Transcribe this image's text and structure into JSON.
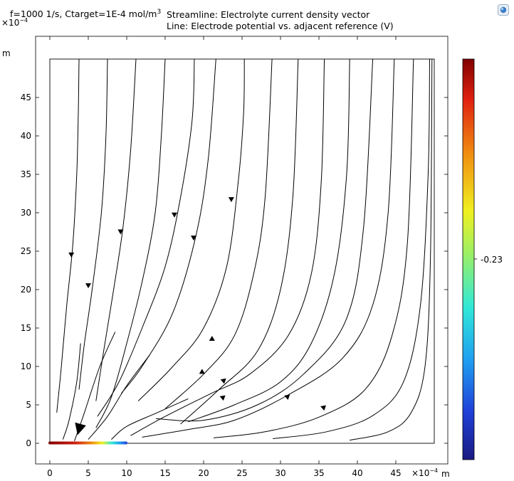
{
  "header": {
    "left_title_main": "f=1000 1/s, Ctarget=1E-4 mol/m",
    "left_title_sup": "3",
    "right_title_line1": "Streamline: Electrolyte current density vector",
    "right_title_line2": "Line: Electrode potential vs. adjacent reference (V)"
  },
  "colors": {
    "background": "#ffffff",
    "streamline": "#000000",
    "frame": "#000000",
    "colormap": [
      "#1a1a80",
      "#1f40d8",
      "#1fa0f0",
      "#30e8d8",
      "#a0f060",
      "#f0f020",
      "#f09010",
      "#e02010",
      "#800000"
    ]
  },
  "chart_data": {
    "type": "streamline",
    "xlabel": "m",
    "ylabel": "m",
    "x_exponent_label": "×10",
    "x_exponent_power": "−4",
    "y_exponent_label": "×10",
    "y_exponent_power": "−4",
    "xlim": [
      0,
      50
    ],
    "ylim": [
      0,
      50
    ],
    "xticks": [
      0,
      5,
      10,
      15,
      20,
      25,
      30,
      35,
      40,
      45
    ],
    "yticks": [
      0,
      5,
      10,
      15,
      20,
      25,
      30,
      35,
      40,
      45
    ],
    "electrode": {
      "x": [
        0,
        10
      ],
      "y": 0
    },
    "colorbar": {
      "label": "-0.23",
      "label_value": -0.23
    },
    "streamlines": [
      {
        "name": "s1",
        "points": [
          [
            0.9,
            4
          ],
          [
            1.5,
            10
          ],
          [
            2.2,
            18
          ],
          [
            3.0,
            26
          ],
          [
            3.5,
            35
          ],
          [
            3.7,
            43
          ],
          [
            3.8,
            50
          ]
        ],
        "arrows": [
          {
            "x": 2.8,
            "y": 24.5,
            "dir": "down"
          }
        ]
      },
      {
        "name": "s2",
        "points": [
          [
            3.8,
            7
          ],
          [
            4.5,
            13
          ],
          [
            5.5,
            20
          ],
          [
            6.7,
            30
          ],
          [
            7.3,
            40
          ],
          [
            7.5,
            50
          ]
        ],
        "arrows": [
          {
            "x": 5.0,
            "y": 20.5,
            "dir": "down"
          }
        ]
      },
      {
        "name": "s3",
        "points": [
          [
            6.0,
            5.5
          ],
          [
            7.0,
            12
          ],
          [
            8.3,
            20
          ],
          [
            9.5,
            28
          ],
          [
            10.5,
            38
          ],
          [
            11.2,
            50
          ]
        ],
        "arrows": [
          {
            "x": 9.2,
            "y": 27.5,
            "dir": "down"
          }
        ]
      },
      {
        "name": "s4",
        "points": [
          [
            6.0,
            2
          ],
          [
            8,
            6
          ],
          [
            10,
            13
          ],
          [
            12,
            21
          ],
          [
            13.7,
            30
          ],
          [
            14.5,
            40
          ],
          [
            15,
            50
          ]
        ],
        "arrows": []
      },
      {
        "name": "s5",
        "points": [
          [
            6.2,
            3.5
          ],
          [
            9,
            8
          ],
          [
            12,
            15
          ],
          [
            15,
            23
          ],
          [
            17,
            32
          ],
          [
            18.5,
            42
          ],
          [
            18.8,
            50
          ]
        ],
        "arrows": [
          {
            "x": 16.2,
            "y": 29.7,
            "dir": "down"
          }
        ]
      },
      {
        "name": "s6",
        "points": [
          [
            9.3,
            6.5
          ],
          [
            12,
            10
          ],
          [
            16,
            17
          ],
          [
            19,
            27
          ],
          [
            20.6,
            37
          ],
          [
            21.6,
            50
          ]
        ],
        "arrows": [
          {
            "x": 18.7,
            "y": 26.7,
            "dir": "down"
          }
        ]
      },
      {
        "name": "s7",
        "points": [
          [
            11.5,
            5.5
          ],
          [
            16,
            10
          ],
          [
            20,
            15
          ],
          [
            23,
            23
          ],
          [
            24.5,
            34
          ],
          [
            25.2,
            43
          ],
          [
            25.3,
            50
          ]
        ],
        "arrows": [
          {
            "x": 23.6,
            "y": 31.7,
            "dir": "down"
          }
        ]
      },
      {
        "name": "s8",
        "points": [
          [
            15,
            4.5
          ],
          [
            20,
            9
          ],
          [
            24,
            14
          ],
          [
            26.5,
            22
          ],
          [
            28,
            32
          ],
          [
            28.9,
            50
          ]
        ],
        "arrows": [
          {
            "x": 21.0,
            "y": 13.5,
            "dir": "left-down"
          }
        ]
      },
      {
        "name": "s9",
        "points": [
          [
            17,
            2.5
          ],
          [
            22,
            7
          ],
          [
            27,
            12
          ],
          [
            30,
            20
          ],
          [
            31.6,
            32
          ],
          [
            32.3,
            50
          ]
        ],
        "arrows": [
          {
            "x": 19.7,
            "y": 9.2,
            "dir": "left-down"
          }
        ]
      },
      {
        "name": "s10",
        "points": [
          [
            10.5,
            1
          ],
          [
            15,
            3.5
          ],
          [
            21,
            6.5
          ],
          [
            26,
            9
          ],
          [
            31,
            14
          ],
          [
            34,
            22
          ],
          [
            35.3,
            34
          ],
          [
            35.7,
            50
          ]
        ],
        "arrows": [
          {
            "x": 22.5,
            "y": 8.2,
            "dir": "left"
          }
        ]
      },
      {
        "name": "s11",
        "points": [
          [
            18.0,
            2.8
          ],
          [
            24,
            5
          ],
          [
            30,
            8
          ],
          [
            34,
            13
          ],
          [
            37,
            22
          ],
          [
            38.6,
            35
          ],
          [
            39.0,
            50
          ]
        ],
        "arrows": [
          {
            "x": 22.4,
            "y": 6.0,
            "dir": "left"
          }
        ]
      },
      {
        "name": "s12",
        "points": [
          [
            13.8,
            3.2
          ],
          [
            20,
            3
          ],
          [
            27,
            5
          ],
          [
            33,
            9
          ],
          [
            38.5,
            16
          ],
          [
            40.8,
            28
          ],
          [
            42,
            50
          ]
        ],
        "arrows": []
      },
      {
        "name": "s13",
        "points": [
          [
            12,
            0.8
          ],
          [
            18,
            1.8
          ],
          [
            24,
            3.0
          ],
          [
            31,
            6.3
          ],
          [
            38,
            11
          ],
          [
            42,
            18
          ],
          [
            44,
            30
          ],
          [
            44.8,
            50
          ]
        ],
        "arrows": [
          {
            "x": 30.8,
            "y": 6.1,
            "dir": "left"
          }
        ]
      },
      {
        "name": "s14",
        "points": [
          [
            21.3,
            0.7
          ],
          [
            28,
            1.5
          ],
          [
            35,
            3.4
          ],
          [
            41,
            7
          ],
          [
            44.5,
            14
          ],
          [
            46.5,
            26
          ],
          [
            47.3,
            50
          ]
        ],
        "arrows": [
          {
            "x": 35.5,
            "y": 4.7,
            "dir": "left"
          }
        ]
      },
      {
        "name": "s15",
        "points": [
          [
            29,
            0.6
          ],
          [
            36,
            1.5
          ],
          [
            42,
            3.6
          ],
          [
            46,
            8
          ],
          [
            48.2,
            18
          ],
          [
            49.2,
            35
          ],
          [
            49.4,
            50
          ]
        ],
        "arrows": []
      },
      {
        "name": "s16",
        "points": [
          [
            39,
            0.4
          ],
          [
            44,
            1.5
          ],
          [
            47,
            4
          ],
          [
            48.8,
            10
          ],
          [
            49.5,
            24
          ],
          [
            49.7,
            50
          ]
        ],
        "arrows": []
      },
      {
        "name": "s17",
        "points": [
          [
            1.7,
            0.5
          ],
          [
            2.5,
            3
          ],
          [
            3.5,
            8
          ],
          [
            4.0,
            13
          ]
        ],
        "arrows": []
      },
      {
        "name": "s18",
        "points": [
          [
            3.2,
            0.3
          ],
          [
            4.5,
            4
          ],
          [
            6.5,
            10
          ],
          [
            8.5,
            14.5
          ]
        ],
        "arrows": [
          {
            "x": 3.8,
            "y": 1.8,
            "dir": "down-big"
          }
        ]
      },
      {
        "name": "s19",
        "points": [
          [
            5.0,
            0.5
          ],
          [
            7.5,
            3.5
          ],
          [
            10,
            7.5
          ],
          [
            13,
            11.5
          ]
        ],
        "arrows": []
      },
      {
        "name": "s20",
        "points": [
          [
            8.0,
            0.5
          ],
          [
            10,
            2.2
          ],
          [
            14,
            4
          ],
          [
            18,
            5.8
          ]
        ],
        "arrows": []
      }
    ]
  }
}
